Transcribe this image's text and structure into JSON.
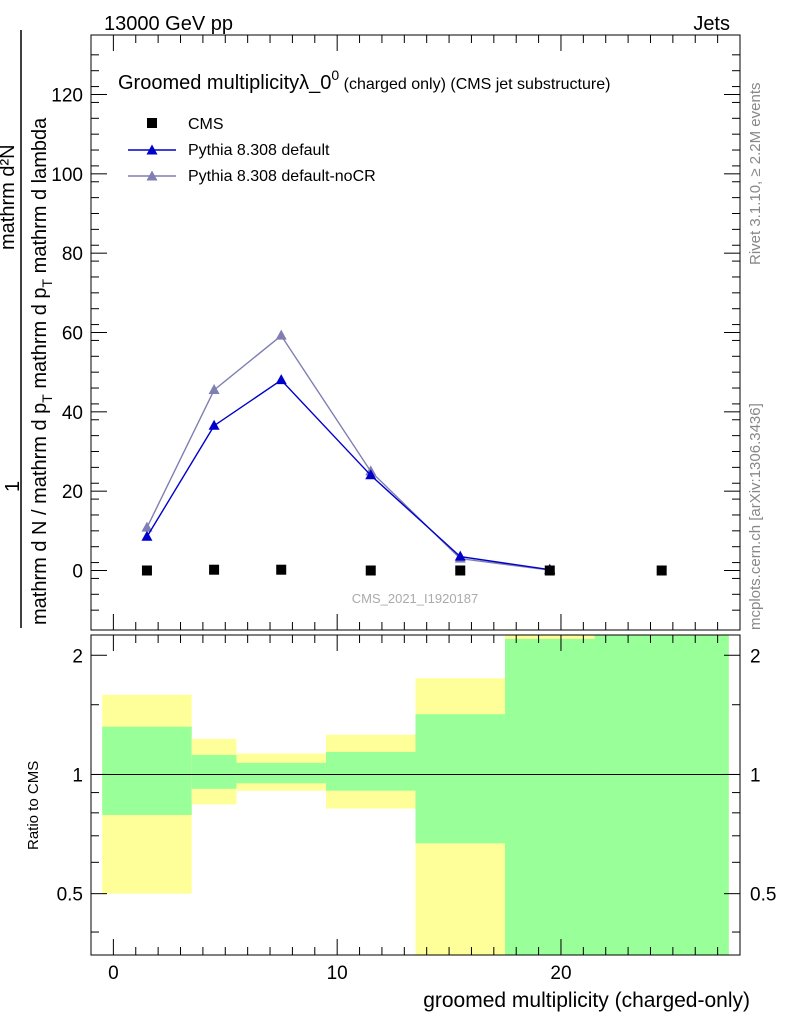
{
  "header": {
    "energy": "13000 GeV pp",
    "category": "Jets"
  },
  "side": {
    "rivet": "Rivet 3.1.10, ≥ 2.2M events",
    "mcplots": "mcplots.cern.ch [arXiv:1306.3436]"
  },
  "plot": {
    "title_main": "Groomed multiplicityλ_0",
    "title_sup": "0",
    "title_suffix": " (charged only) (CMS jet substructure)",
    "ylabel_numerator": "mathrm d²N",
    "ylabel_denominator": "mathrm d N / mathrm d p",
    "ylabel_sub": "T",
    "ylabel_denominator_mid": " mathrm d p",
    "ylabel_denominator_end": " mathrm d lambda",
    "ylabel_one": "1",
    "watermark": "CMS_2021_I1920187",
    "xlabel": "groomed multiplicity (charged-only)",
    "ratio_ylabel": "Ratio to CMS"
  },
  "legend": {
    "cms": "CMS",
    "pythia_default": "Pythia 8.308 default",
    "pythia_nocr": "Pythia 8.308 default-noCR"
  },
  "colors": {
    "pythia_default": "#0000cc",
    "pythia_nocr": "#7f7fb2",
    "band_green": "#99ff99",
    "band_yellow": "#ffff99"
  },
  "chart_data": {
    "type": "scatter",
    "xlim": [
      -1,
      28
    ],
    "ylim": [
      -15,
      135
    ],
    "x_ticks": [
      0,
      10,
      20
    ],
    "y_ticks": [
      0,
      20,
      40,
      60,
      80,
      100,
      120
    ],
    "series": [
      {
        "name": "CMS",
        "x": [
          1.5,
          4.5,
          7.5,
          11.5,
          15.5,
          19.5,
          24.5
        ],
        "y": [
          0.0,
          0.2,
          0.2,
          0.0,
          0.0,
          0.0,
          0.0
        ]
      },
      {
        "name": "Pythia 8.308 default",
        "x": [
          1.5,
          4.5,
          7.5,
          11.5,
          15.5,
          19.5
        ],
        "y": [
          8.5,
          36.5,
          48.0,
          24.0,
          3.5,
          0.2
        ]
      },
      {
        "name": "Pythia 8.308 default-noCR",
        "x": [
          1.5,
          4.5,
          7.5,
          11.5,
          15.5,
          19.5
        ],
        "y": [
          10.8,
          45.5,
          59.2,
          25.0,
          3.0,
          0.1
        ]
      }
    ],
    "ratio": {
      "ylabel": "Ratio to CMS",
      "ylim": [
        0.35,
        2.25
      ],
      "y_ticks": [
        0.5,
        1,
        2
      ],
      "bins": [
        {
          "x_lo": -0.5,
          "x_hi": 3.5,
          "yellow": [
            0.5,
            1.59
          ],
          "green": [
            0.79,
            1.32
          ]
        },
        {
          "x_lo": 3.5,
          "x_hi": 5.5,
          "yellow": [
            0.84,
            1.23
          ],
          "green": [
            0.92,
            1.12
          ]
        },
        {
          "x_lo": 5.5,
          "x_hi": 9.5,
          "yellow": [
            0.91,
            1.13
          ],
          "green": [
            0.95,
            1.07
          ]
        },
        {
          "x_lo": 9.5,
          "x_hi": 13.5,
          "yellow": [
            0.82,
            1.26
          ],
          "green": [
            0.91,
            1.14
          ]
        },
        {
          "x_lo": 13.5,
          "x_hi": 17.5,
          "yellow": [
            0.3,
            1.75
          ],
          "green": [
            0.67,
            1.42
          ]
        },
        {
          "x_lo": 17.5,
          "x_hi": 21.5,
          "yellow": [
            0.3,
            2.35
          ],
          "green": [
            0.3,
            2.2
          ]
        },
        {
          "x_lo": 21.5,
          "x_hi": 27.5,
          "yellow": [
            0.3,
            2.35
          ],
          "green": [
            0.3,
            2.35
          ]
        }
      ]
    }
  }
}
